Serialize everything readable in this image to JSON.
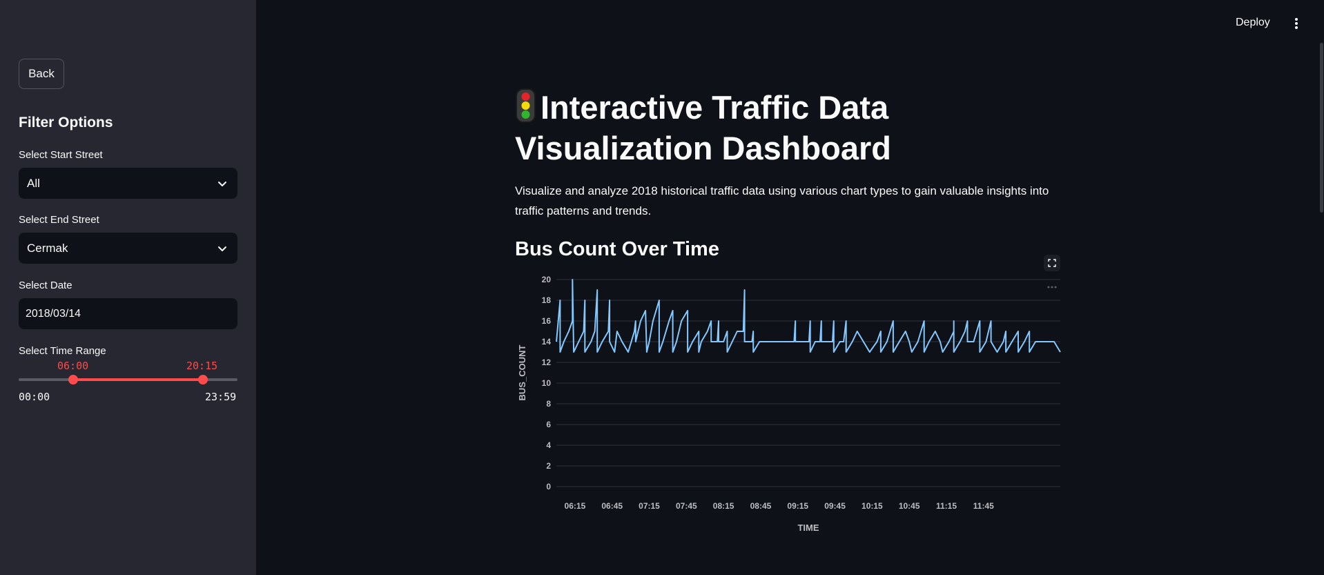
{
  "sidebar": {
    "back_label": "Back",
    "filter_title": "Filter Options",
    "start_street": {
      "label": "Select Start Street",
      "value": "All"
    },
    "end_street": {
      "label": "Select End Street",
      "value": "Cermak"
    },
    "date": {
      "label": "Select Date",
      "value": "2018/03/14"
    },
    "time_range": {
      "label": "Select Time Range",
      "low": "06:00",
      "high": "20:15",
      "min": "00:00",
      "max": "23:59",
      "low_fraction": 0.25,
      "high_fraction": 0.844
    }
  },
  "header": {
    "deploy_label": "Deploy"
  },
  "main": {
    "title_icon": "traffic-light-icon",
    "title": "Interactive Traffic Data Visualization Dashboard",
    "description": "Visualize and analyze 2018 historical traffic data using various chart types to gain valuable insights into traffic patterns and trends.",
    "chart_title": "Bus Count Over Time"
  },
  "colors": {
    "accent": "#ff4b4b",
    "line": "#83c9ff",
    "sidebar_bg": "#262730",
    "main_bg": "#0e1117"
  },
  "chart_data": {
    "type": "line",
    "xlabel": "TIME",
    "ylabel": "BUS_COUNT",
    "ylim": [
      0,
      20
    ],
    "yticks": [
      "0",
      "2",
      "4",
      "6",
      "8",
      "10",
      "12",
      "14",
      "16",
      "18",
      "20"
    ],
    "xticks": [
      "06:15",
      "06:45",
      "07:15",
      "07:45",
      "08:15",
      "08:45",
      "09:15",
      "09:45",
      "10:15",
      "10:45",
      "11:15",
      "11:45"
    ],
    "xlim_minutes": [
      360,
      767
    ],
    "grid": true,
    "points": [
      [
        360,
        14
      ],
      [
        363,
        18
      ],
      [
        363,
        13
      ],
      [
        366,
        14
      ],
      [
        370,
        15
      ],
      [
        373,
        16
      ],
      [
        373,
        20
      ],
      [
        374,
        13
      ],
      [
        378,
        14
      ],
      [
        382,
        15
      ],
      [
        383,
        18
      ],
      [
        383,
        13
      ],
      [
        388,
        14
      ],
      [
        391,
        15
      ],
      [
        393,
        19
      ],
      [
        393,
        13
      ],
      [
        397,
        14
      ],
      [
        402,
        15
      ],
      [
        403,
        18
      ],
      [
        403,
        14
      ],
      [
        407,
        13
      ],
      [
        409,
        15
      ],
      [
        413,
        14
      ],
      [
        418,
        13
      ],
      [
        423,
        15
      ],
      [
        424,
        16
      ],
      [
        424,
        14
      ],
      [
        428,
        16
      ],
      [
        432,
        17
      ],
      [
        433,
        13
      ],
      [
        435,
        14
      ],
      [
        438,
        16
      ],
      [
        443,
        18
      ],
      [
        443,
        13
      ],
      [
        446,
        14
      ],
      [
        451,
        16
      ],
      [
        454,
        17
      ],
      [
        454,
        13
      ],
      [
        457,
        14
      ],
      [
        461,
        16
      ],
      [
        466,
        17
      ],
      [
        466,
        13
      ],
      [
        470,
        14
      ],
      [
        475,
        15
      ],
      [
        475,
        13
      ],
      [
        477,
        14
      ],
      [
        482,
        15
      ],
      [
        485,
        16
      ],
      [
        485,
        14
      ],
      [
        490,
        14
      ],
      [
        491,
        16
      ],
      [
        491,
        14
      ],
      [
        495,
        14
      ],
      [
        498,
        15
      ],
      [
        498,
        13
      ],
      [
        502,
        14
      ],
      [
        506,
        15
      ],
      [
        511,
        15
      ],
      [
        512,
        19
      ],
      [
        512,
        14
      ],
      [
        518,
        14
      ],
      [
        519,
        15
      ],
      [
        519,
        13
      ],
      [
        524,
        14
      ],
      [
        530,
        14
      ],
      [
        534,
        14
      ],
      [
        540,
        14
      ],
      [
        547,
        14
      ],
      [
        552,
        14
      ],
      [
        553,
        16
      ],
      [
        553,
        14
      ],
      [
        558,
        14
      ],
      [
        564,
        14
      ],
      [
        565,
        16
      ],
      [
        565,
        13
      ],
      [
        569,
        14
      ],
      [
        573,
        14
      ],
      [
        574,
        16
      ],
      [
        574,
        14
      ],
      [
        578,
        14
      ],
      [
        583,
        14
      ],
      [
        584,
        16
      ],
      [
        584,
        13
      ],
      [
        589,
        14
      ],
      [
        592,
        14
      ],
      [
        594,
        16
      ],
      [
        594,
        13
      ],
      [
        599,
        14
      ],
      [
        603,
        15
      ],
      [
        608,
        14
      ],
      [
        613,
        13
      ],
      [
        619,
        14
      ],
      [
        622,
        15
      ],
      [
        622,
        13
      ],
      [
        627,
        14
      ],
      [
        632,
        16
      ],
      [
        632,
        13
      ],
      [
        637,
        14
      ],
      [
        642,
        15
      ],
      [
        645,
        14
      ],
      [
        647,
        13
      ],
      [
        652,
        14
      ],
      [
        657,
        16
      ],
      [
        657,
        13
      ],
      [
        661,
        14
      ],
      [
        666,
        15
      ],
      [
        670,
        14
      ],
      [
        672,
        13
      ],
      [
        677,
        14
      ],
      [
        681,
        15
      ],
      [
        681,
        16
      ],
      [
        681,
        13
      ],
      [
        686,
        14
      ],
      [
        690,
        15
      ],
      [
        692,
        16
      ],
      [
        692,
        14
      ],
      [
        697,
        14
      ],
      [
        702,
        16
      ],
      [
        702,
        13
      ],
      [
        707,
        14
      ],
      [
        711,
        16
      ],
      [
        711,
        14
      ],
      [
        716,
        13
      ],
      [
        721,
        14
      ],
      [
        723,
        15
      ],
      [
        723,
        13
      ],
      [
        728,
        14
      ],
      [
        733,
        15
      ],
      [
        733,
        13
      ],
      [
        738,
        14
      ],
      [
        742,
        15
      ],
      [
        742,
        13
      ],
      [
        747,
        14
      ],
      [
        752,
        14
      ],
      [
        757,
        14
      ],
      [
        762,
        14
      ],
      [
        767,
        13
      ]
    ]
  }
}
